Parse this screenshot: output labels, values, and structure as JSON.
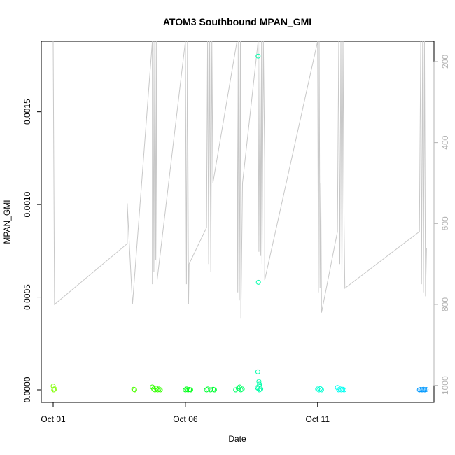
{
  "chart_data": {
    "type": "scatter",
    "title": "ATOM3 Southbound MPAN_GMI",
    "xlabel": "Date",
    "ylabel": "MPAN_GMI",
    "x_unit": "day of October",
    "xlim": [
      0.55,
      15.4
    ],
    "ylim": [
      -6.8e-05,
      0.00188
    ],
    "y_ticks": [
      {
        "value": 0.0,
        "label": "0.0000"
      },
      {
        "value": 0.0005,
        "label": "0.0005"
      },
      {
        "value": 0.001,
        "label": "0.0010"
      },
      {
        "value": 0.0015,
        "label": "0.0015"
      }
    ],
    "x_ticks": [
      {
        "value": 1,
        "label": "Oct 01"
      },
      {
        "value": 6,
        "label": "Oct 06"
      },
      {
        "value": 11,
        "label": "Oct 11"
      }
    ],
    "y2_axis": {
      "color": "#b3b3b3",
      "reversed": true,
      "lim": [
        150,
        1042
      ],
      "ticks": [
        {
          "value": 200,
          "label": "200"
        },
        {
          "value": 400,
          "label": "400"
        },
        {
          "value": 600,
          "label": "600"
        },
        {
          "value": 800,
          "label": "800"
        },
        {
          "value": 1000,
          "label": "1000"
        }
      ]
    },
    "points": [
      {
        "x": 1.0,
        "y": 2e-05,
        "color": "#7fff00"
      },
      {
        "x": 1.02,
        "y": 0.0,
        "color": "#7fff00"
      },
      {
        "x": 1.05,
        "y": 5e-06,
        "color": "#7fff00"
      },
      {
        "x": 4.05,
        "y": 3e-06,
        "color": "#4cff00"
      },
      {
        "x": 4.08,
        "y": 0.0,
        "color": "#4cff00"
      },
      {
        "x": 4.75,
        "y": 1.5e-05,
        "color": "#33ff00"
      },
      {
        "x": 4.8,
        "y": 5e-06,
        "color": "#33ff00"
      },
      {
        "x": 4.85,
        "y": 0.0,
        "color": "#33ff00"
      },
      {
        "x": 4.9,
        "y": 8e-06,
        "color": "#33ff00"
      },
      {
        "x": 4.95,
        "y": 0.0,
        "color": "#33ff00"
      },
      {
        "x": 5.0,
        "y": 4e-06,
        "color": "#33ff00"
      },
      {
        "x": 5.05,
        "y": 0.0,
        "color": "#33ff00"
      },
      {
        "x": 6.0,
        "y": 0.0,
        "color": "#00ff19"
      },
      {
        "x": 6.05,
        "y": 4e-06,
        "color": "#00ff19"
      },
      {
        "x": 6.1,
        "y": 0.0,
        "color": "#00ff19"
      },
      {
        "x": 6.15,
        "y": 2e-06,
        "color": "#00ff19"
      },
      {
        "x": 6.2,
        "y": 0.0,
        "color": "#00ff19"
      },
      {
        "x": 6.8,
        "y": 0.0,
        "color": "#00ff33"
      },
      {
        "x": 6.85,
        "y": 4e-06,
        "color": "#00ff33"
      },
      {
        "x": 6.95,
        "y": 0.0,
        "color": "#00ff33"
      },
      {
        "x": 7.05,
        "y": 3e-06,
        "color": "#00ff33"
      },
      {
        "x": 7.1,
        "y": 0.0,
        "color": "#00ff33"
      },
      {
        "x": 7.9,
        "y": 0.0,
        "color": "#00ff66"
      },
      {
        "x": 8.0,
        "y": 8e-06,
        "color": "#00ff66"
      },
      {
        "x": 8.05,
        "y": 1.5e-05,
        "color": "#00ff66"
      },
      {
        "x": 8.1,
        "y": 0.0,
        "color": "#00ff66"
      },
      {
        "x": 8.15,
        "y": 4e-06,
        "color": "#00ff66"
      },
      {
        "x": 8.75,
        "y": 0.0018,
        "color": "#00ffaa"
      },
      {
        "x": 8.76,
        "y": 0.00058,
        "color": "#00ffaa"
      },
      {
        "x": 8.74,
        "y": 9.69e-05,
        "color": "#00ffaa"
      },
      {
        "x": 8.78,
        "y": 4.5e-05,
        "color": "#00ffaa"
      },
      {
        "x": 8.8,
        "y": 3e-05,
        "color": "#00ffaa"
      },
      {
        "x": 8.82,
        "y": 1.8e-05,
        "color": "#00ffaa"
      },
      {
        "x": 8.75,
        "y": 8e-06,
        "color": "#00ffaa"
      },
      {
        "x": 8.8,
        "y": 0.0,
        "color": "#00ffaa"
      },
      {
        "x": 8.85,
        "y": 5e-06,
        "color": "#00ffaa"
      },
      {
        "x": 8.72,
        "y": 1.2e-05,
        "color": "#00ffaa"
      },
      {
        "x": 11.0,
        "y": 4e-06,
        "color": "#00ffd4"
      },
      {
        "x": 11.05,
        "y": 0.0,
        "color": "#00ffd4"
      },
      {
        "x": 11.1,
        "y": 6e-06,
        "color": "#00ffd4"
      },
      {
        "x": 11.15,
        "y": 0.0,
        "color": "#00ffd4"
      },
      {
        "x": 11.75,
        "y": 1.2e-05,
        "color": "#00fff2"
      },
      {
        "x": 11.8,
        "y": 0.0,
        "color": "#00fff2"
      },
      {
        "x": 11.85,
        "y": 5e-06,
        "color": "#00fff2"
      },
      {
        "x": 11.9,
        "y": 0.0,
        "color": "#00fff2"
      },
      {
        "x": 11.95,
        "y": 3e-06,
        "color": "#00fff2"
      },
      {
        "x": 12.0,
        "y": 0.0,
        "color": "#00fff2"
      },
      {
        "x": 14.85,
        "y": 0.0,
        "color": "#0099ff"
      },
      {
        "x": 14.9,
        "y": 2e-06,
        "color": "#0099ff"
      },
      {
        "x": 14.95,
        "y": 0.0,
        "color": "#0099ff"
      },
      {
        "x": 15.0,
        "y": 3e-06,
        "color": "#0099ff"
      },
      {
        "x": 15.05,
        "y": 0.0,
        "color": "#0099ff"
      },
      {
        "x": 15.1,
        "y": 2e-06,
        "color": "#0099ff"
      }
    ],
    "secondary_line": {
      "color": "#c8c8c8",
      "axis": "y2",
      "points": [
        [
          1.0,
          150
        ],
        [
          1.0,
          150
        ],
        [
          1.05,
          800
        ],
        [
          3.8,
          650
        ],
        [
          3.8,
          550
        ],
        [
          4.0,
          800
        ],
        [
          4.75,
          150
        ],
        [
          4.75,
          750
        ],
        [
          4.78,
          150
        ],
        [
          4.81,
          720
        ],
        [
          4.84,
          150
        ],
        [
          4.88,
          690
        ],
        [
          4.9,
          150
        ],
        [
          4.93,
          740
        ],
        [
          6.0,
          150
        ],
        [
          6.04,
          750
        ],
        [
          6.08,
          150
        ],
        [
          6.12,
          800
        ],
        [
          6.14,
          700
        ],
        [
          6.8,
          610
        ],
        [
          6.84,
          150
        ],
        [
          6.88,
          700
        ],
        [
          6.92,
          150
        ],
        [
          6.96,
          720
        ],
        [
          7.0,
          150
        ],
        [
          7.04,
          500
        ],
        [
          7.95,
          150
        ],
        [
          7.98,
          770
        ],
        [
          8.01,
          150
        ],
        [
          8.04,
          790
        ],
        [
          8.08,
          150
        ],
        [
          8.1,
          835
        ],
        [
          8.16,
          500
        ],
        [
          8.75,
          150
        ],
        [
          8.78,
          670
        ],
        [
          8.82,
          150
        ],
        [
          8.85,
          680
        ],
        [
          8.88,
          150
        ],
        [
          8.9,
          700
        ],
        [
          8.95,
          150
        ],
        [
          9.0,
          450
        ],
        [
          9.0,
          740
        ],
        [
          11.0,
          150
        ],
        [
          11.03,
          770
        ],
        [
          11.06,
          150
        ],
        [
          11.09,
          760
        ],
        [
          11.12,
          500
        ],
        [
          11.15,
          820
        ],
        [
          11.75,
          620
        ],
        [
          11.8,
          150
        ],
        [
          11.84,
          700
        ],
        [
          11.88,
          150
        ],
        [
          11.92,
          730
        ],
        [
          11.96,
          150
        ],
        [
          12.0,
          600
        ],
        [
          12.03,
          760
        ],
        [
          14.85,
          620
        ],
        [
          14.9,
          150
        ],
        [
          14.93,
          750
        ],
        [
          14.97,
          150
        ],
        [
          15.0,
          770
        ],
        [
          15.04,
          150
        ],
        [
          15.08,
          780
        ],
        [
          15.12,
          660
        ]
      ]
    }
  }
}
